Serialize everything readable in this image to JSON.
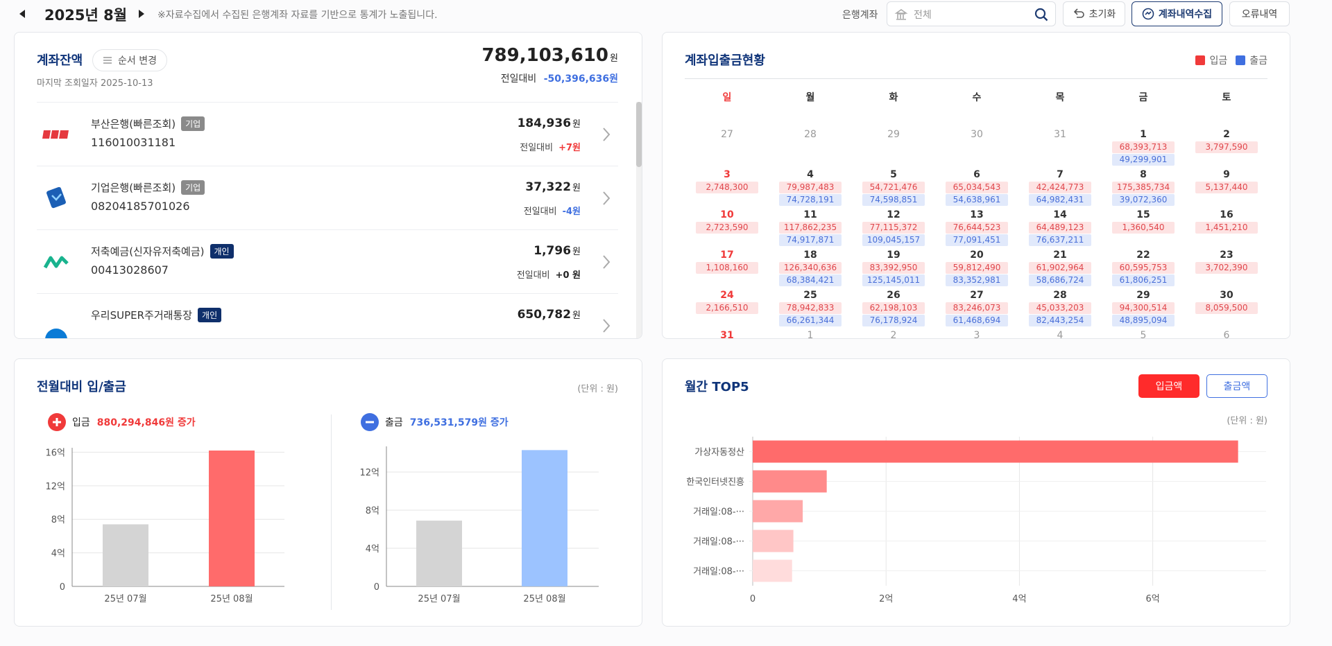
{
  "header": {
    "period": "2025년 8월",
    "notice": "※자료수집에서 수집된 은행계좌 자료를 기반으로 통계가 노출됩니다.",
    "bank_label": "은행계좌",
    "search_placeholder": "전체",
    "buttons": [
      "초기화",
      "계좌내역수집",
      "오류내역"
    ]
  },
  "balance": {
    "title": "계좌잔액",
    "order_button": "순서 변경",
    "last_query": "마지막 조회일자 2025-10-13",
    "total": "789,103,610",
    "unit": "원",
    "compare_label": "전일대비",
    "compare": "-50,396,636원",
    "accounts": [
      {
        "name": "부산은행(빠른조회)",
        "tag": "기업",
        "tag_color": "#8a8a8a",
        "number": "116010031181",
        "balance": "184,936",
        "compare": "+7원"
      },
      {
        "name": "기업은행(빠른조회)",
        "tag": "기업",
        "tag_color": "#8a8a8a",
        "number": "08204185701026",
        "balance": "37,322",
        "compare": "-4원"
      },
      {
        "name": "저축예금(신자유저축예금)",
        "tag": "개인",
        "tag_color": "#0f2f6b",
        "number": "00413028607",
        "balance": "1,796",
        "compare": "+0 원"
      },
      {
        "name": "우리SUPER주거래통장",
        "tag": "개인",
        "tag_color": "#0f2f6b",
        "balance": "650,782"
      }
    ]
  },
  "calendar": {
    "title": "계좌입출금현황",
    "legend": [
      {
        "name": "입금",
        "color": "#f03a3a"
      },
      {
        "name": "출금",
        "color": "#3f6fe0"
      }
    ],
    "weekdays": [
      "일",
      "월",
      "화",
      "수",
      "목",
      "금",
      "토"
    ],
    "weeks": [
      [
        {
          "day": 27
        },
        {
          "day": 28
        },
        {
          "day": 29
        },
        {
          "day": 30
        },
        {
          "day": 31
        },
        {
          "day": 1,
          "in": "68,393,713",
          "out": "49,299,901"
        },
        {
          "day": 2,
          "in": "3,797,590"
        }
      ],
      [
        {
          "day": 3,
          "in": "2,748,300"
        },
        {
          "day": 4,
          "in": "79,987,483",
          "out": "74,728,191"
        },
        {
          "day": 5,
          "in": "54,721,476",
          "out": "74,598,851"
        },
        {
          "day": 6,
          "in": "65,034,543",
          "out": "54,638,961"
        },
        {
          "day": 7,
          "in": "42,424,773",
          "out": "64,982,431"
        },
        {
          "day": 8,
          "in": "175,385,734",
          "out": "39,072,360"
        },
        {
          "day": 9,
          "in": "5,137,440"
        }
      ],
      [
        {
          "day": 10,
          "in": "2,723,590"
        },
        {
          "day": 11,
          "in": "117,862,235",
          "out": "74,917,871"
        },
        {
          "day": 12,
          "in": "77,115,372",
          "out": "109,045,157"
        },
        {
          "day": 13,
          "in": "76,644,523",
          "out": "77,091,451"
        },
        {
          "day": 14,
          "in": "64,489,123",
          "out": "76,637,211"
        },
        {
          "day": 15,
          "in": "1,360,540"
        },
        {
          "day": 16,
          "in": "1,451,210"
        }
      ],
      [
        {
          "day": 17,
          "in": "1,108,160"
        },
        {
          "day": 18,
          "in": "126,340,636",
          "out": "68,384,421"
        },
        {
          "day": 19,
          "in": "83,392,950",
          "out": "125,145,011"
        },
        {
          "day": 20,
          "in": "59,812,490",
          "out": "83,352,981"
        },
        {
          "day": 21,
          "in": "61,902,964",
          "out": "58,686,724"
        },
        {
          "day": 22,
          "in": "60,595,753",
          "out": "61,806,251"
        },
        {
          "day": 23,
          "in": "3,702,390"
        }
      ],
      [
        {
          "day": 24,
          "in": "2,166,510"
        },
        {
          "day": 25,
          "in": "78,942,833",
          "out": "66,261,344"
        },
        {
          "day": 26,
          "in": "62,198,103",
          "out": "76,178,924"
        },
        {
          "day": 27,
          "in": "83,246,073",
          "out": "61,468,694"
        },
        {
          "day": 28,
          "in": "45,033,203",
          "out": "82,443,254"
        },
        {
          "day": 29,
          "in": "94,300,514",
          "out": "48,895,094"
        },
        {
          "day": 30,
          "in": "8,059,500"
        }
      ],
      [
        {
          "day": 31
        },
        {
          "day": 1
        },
        {
          "day": 2
        },
        {
          "day": 3
        },
        {
          "day": 4
        },
        {
          "day": 5
        },
        {
          "day": 6
        }
      ]
    ]
  },
  "compare_panel": {
    "title": "전월대비 입/출금",
    "unit": "(단위 : 원)"
  },
  "top5_panel": {
    "title": "월간 TOP5",
    "buttons": [
      "입금액",
      "출금액"
    ],
    "unit": "(단위 : 원)"
  },
  "chart_data": [
    {
      "type": "bar",
      "title": "입금",
      "subtitle": "880,294,846원 증가",
      "accent": "#f03a3a",
      "categories": [
        "25년 07월",
        "25년 08월"
      ],
      "values": [
        7.4,
        16.2
      ],
      "colors": [
        "#d4d4d4",
        "#ff6b6b"
      ],
      "ylim": [
        0,
        16.2
      ],
      "yticks": [
        0,
        {
          "value": 4,
          "label": "4억"
        },
        {
          "value": 8,
          "label": "8억"
        },
        {
          "value": 12,
          "label": "12억"
        },
        {
          "value": 16,
          "label": "16억"
        }
      ],
      "grid": true
    },
    {
      "type": "bar",
      "title": "출금",
      "subtitle": "736,531,579원 증가",
      "accent": "#3f6fe0",
      "categories": [
        "25년 07월",
        "25년 08월"
      ],
      "values": [
        6.9,
        14.3
      ],
      "colors": [
        "#d4d4d4",
        "#9cc3ff"
      ],
      "ylim": [
        0,
        14.4
      ],
      "yticks": [
        0,
        {
          "value": 4,
          "label": "4억"
        },
        {
          "value": 8,
          "label": "8억"
        },
        {
          "value": 12,
          "label": "12억"
        }
      ],
      "grid": true
    },
    {
      "type": "barh",
      "categories": [
        "가상자동정산",
        "한국인터넷진흥",
        "거래일:08-···",
        "거래일:08-···",
        "거래일:08-···"
      ],
      "values": [
        7.28,
        1.11,
        0.75,
        0.61,
        0.59
      ],
      "colors": [
        "#ff6b6b",
        "#ff8a8a",
        "#ffa8a8",
        "#ffc6c6",
        "#ffdcdc"
      ],
      "xlim": [
        0,
        7.7
      ],
      "xticks": [
        0,
        {
          "value": 2,
          "label": "2억"
        },
        {
          "value": 4,
          "label": "4억"
        },
        {
          "value": 6,
          "label": "6억"
        }
      ],
      "grid": true
    }
  ]
}
